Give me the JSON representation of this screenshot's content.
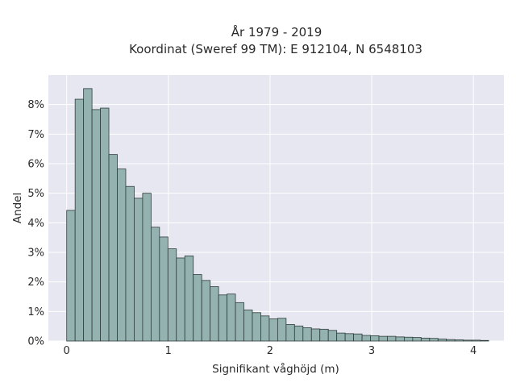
{
  "chart_data": {
    "type": "bar",
    "title": "År 1979 - 2019",
    "subtitle": "Koordinat (Sweref 99 TM): E 912104, N 6548103",
    "xlabel": "Signifikant våghöjd (m)",
    "ylabel": "Andel",
    "bin_width": 0.083,
    "bin_start": 0.0,
    "xlim": [
      -0.18,
      4.3
    ],
    "ylim": [
      0,
      0.09
    ],
    "x_ticks": [
      0,
      1,
      2,
      3,
      4
    ],
    "x_tick_labels": [
      "0",
      "1",
      "2",
      "3",
      "4"
    ],
    "y_ticks": [
      0,
      0.01,
      0.02,
      0.03,
      0.04,
      0.05,
      0.06,
      0.07,
      0.08
    ],
    "y_tick_labels": [
      "0%",
      "1%",
      "2%",
      "3%",
      "4%",
      "5%",
      "6%",
      "7%",
      "8%"
    ],
    "values": [
      0.0442,
      0.0818,
      0.0854,
      0.0783,
      0.0788,
      0.0631,
      0.0582,
      0.0523,
      0.0483,
      0.05,
      0.0385,
      0.0352,
      0.0312,
      0.0281,
      0.0288,
      0.0225,
      0.0205,
      0.0184,
      0.0156,
      0.0159,
      0.013,
      0.0105,
      0.0096,
      0.0085,
      0.0075,
      0.0077,
      0.0056,
      0.0051,
      0.0045,
      0.0041,
      0.004,
      0.0036,
      0.0027,
      0.0025,
      0.0024,
      0.0019,
      0.0018,
      0.0016,
      0.0016,
      0.0014,
      0.0013,
      0.0012,
      0.001,
      0.0009,
      0.0007,
      0.0005,
      0.0004,
      0.0003,
      0.0003,
      0.0002
    ],
    "grid": true,
    "colors": {
      "bar_fill": "#94b2b0",
      "bar_edge": "#2f3d3c",
      "plot_bg": "#e6e7f0",
      "grid": "#ffffff"
    }
  }
}
